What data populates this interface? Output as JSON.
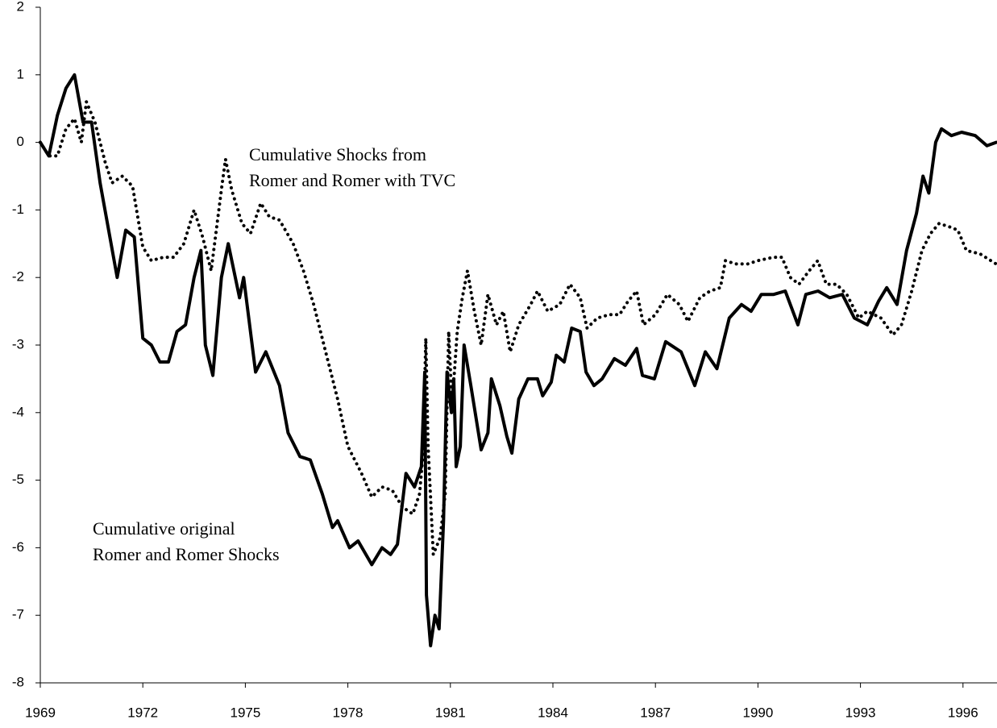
{
  "chart_data": {
    "type": "line",
    "xlim": [
      1969,
      1997
    ],
    "ylim": [
      -8,
      2
    ],
    "xticks": [
      1969,
      1972,
      1975,
      1978,
      1981,
      1984,
      1987,
      1990,
      1993,
      1996
    ],
    "yticks": [
      -8,
      -7,
      -6,
      -5,
      -4,
      -3,
      -2,
      -1,
      0,
      1,
      2
    ],
    "annotations": [
      {
        "lines": [
          "Cumulative Shocks from",
          "Romer and Romer with TVC"
        ]
      },
      {
        "lines": [
          "Cumulative original",
          "Romer and Romer Shocks"
        ]
      }
    ],
    "series": [
      {
        "color": "#000000",
        "style": "dotted",
        "x": [
          1969.0,
          1969.25,
          1969.5,
          1969.75,
          1970.0,
          1970.2,
          1970.35,
          1970.6,
          1970.9,
          1971.1,
          1971.4,
          1971.7,
          1972.0,
          1972.25,
          1972.6,
          1972.9,
          1973.2,
          1973.5,
          1973.75,
          1974.0,
          1974.3,
          1974.42,
          1974.6,
          1974.9,
          1975.15,
          1975.45,
          1975.7,
          1976.0,
          1976.4,
          1976.7,
          1977.0,
          1977.3,
          1977.7,
          1978.0,
          1978.4,
          1978.7,
          1979.0,
          1979.3,
          1979.6,
          1979.9,
          1980.1,
          1980.2,
          1980.28,
          1980.35,
          1980.5,
          1980.7,
          1980.85,
          1980.95,
          1981.05,
          1981.2,
          1981.35,
          1981.5,
          1981.7,
          1981.9,
          1982.1,
          1982.35,
          1982.55,
          1982.75,
          1983.0,
          1983.35,
          1983.55,
          1983.85,
          1984.2,
          1984.5,
          1984.8,
          1985.0,
          1985.3,
          1985.65,
          1985.95,
          1986.2,
          1986.45,
          1986.65,
          1987.0,
          1987.35,
          1987.7,
          1987.95,
          1988.3,
          1988.6,
          1988.9,
          1989.05,
          1989.35,
          1989.7,
          1990.0,
          1990.45,
          1990.7,
          1990.95,
          1991.2,
          1991.5,
          1991.75,
          1992.0,
          1992.3,
          1992.6,
          1992.95,
          1993.2,
          1993.6,
          1993.95,
          1994.2,
          1994.5,
          1994.8,
          1995.05,
          1995.3,
          1995.6,
          1995.85,
          1996.1,
          1996.5,
          1996.97
        ],
        "values": [
          0,
          -0.2,
          -0.2,
          0.2,
          0.35,
          0.0,
          0.6,
          0.3,
          -0.3,
          -0.6,
          -0.5,
          -0.65,
          -1.55,
          -1.75,
          -1.7,
          -1.7,
          -1.5,
          -1.0,
          -1.4,
          -1.9,
          -0.7,
          -0.25,
          -0.7,
          -1.2,
          -1.35,
          -0.9,
          -1.1,
          -1.15,
          -1.5,
          -1.9,
          -2.4,
          -3.0,
          -3.8,
          -4.5,
          -4.9,
          -5.25,
          -5.1,
          -5.15,
          -5.4,
          -5.5,
          -5.2,
          -4.6,
          -2.9,
          -4.5,
          -6.1,
          -5.85,
          -5.2,
          -2.8,
          -3.9,
          -2.8,
          -2.3,
          -1.9,
          -2.5,
          -3.0,
          -2.25,
          -2.7,
          -2.5,
          -3.1,
          -2.7,
          -2.4,
          -2.2,
          -2.5,
          -2.4,
          -2.1,
          -2.3,
          -2.75,
          -2.6,
          -2.55,
          -2.55,
          -2.35,
          -2.2,
          -2.7,
          -2.55,
          -2.25,
          -2.4,
          -2.65,
          -2.3,
          -2.2,
          -2.15,
          -1.75,
          -1.8,
          -1.8,
          -1.75,
          -1.7,
          -1.7,
          -2.0,
          -2.1,
          -1.9,
          -1.75,
          -2.1,
          -2.1,
          -2.25,
          -2.6,
          -2.5,
          -2.6,
          -2.85,
          -2.7,
          -2.2,
          -1.6,
          -1.35,
          -1.2,
          -1.25,
          -1.3,
          -1.6,
          -1.65,
          -1.8
        ]
      },
      {
        "color": "#000000",
        "style": "solid",
        "x": [
          1969.0,
          1969.25,
          1969.5,
          1969.75,
          1970.0,
          1970.25,
          1970.5,
          1970.75,
          1971.0,
          1971.25,
          1971.5,
          1971.75,
          1972.0,
          1972.25,
          1972.5,
          1972.75,
          1973.0,
          1973.25,
          1973.5,
          1973.7,
          1973.83,
          1974.05,
          1974.3,
          1974.5,
          1974.83,
          1974.95,
          1975.3,
          1975.6,
          1976.0,
          1976.25,
          1976.6,
          1976.9,
          1977.25,
          1977.55,
          1977.7,
          1978.05,
          1978.3,
          1978.7,
          1979.0,
          1979.25,
          1979.45,
          1979.7,
          1979.95,
          1980.15,
          1980.25,
          1980.3,
          1980.42,
          1980.55,
          1980.67,
          1980.8,
          1980.9,
          1981.03,
          1981.1,
          1981.17,
          1981.29,
          1981.4,
          1981.6,
          1981.9,
          1982.1,
          1982.2,
          1982.45,
          1982.65,
          1982.8,
          1983.0,
          1983.27,
          1983.55,
          1983.7,
          1983.95,
          1984.1,
          1984.33,
          1984.55,
          1984.8,
          1984.97,
          1985.2,
          1985.44,
          1985.8,
          1986.12,
          1986.45,
          1986.62,
          1986.97,
          1987.3,
          1987.75,
          1988.15,
          1988.46,
          1988.8,
          1989.16,
          1989.52,
          1989.8,
          1990.1,
          1990.46,
          1990.8,
          1991.17,
          1991.4,
          1991.76,
          1992.1,
          1992.47,
          1992.82,
          1993.2,
          1993.53,
          1993.77,
          1994.07,
          1994.35,
          1994.64,
          1994.83,
          1995.0,
          1995.2,
          1995.37,
          1995.66,
          1995.96,
          1996.36,
          1996.7,
          1996.97
        ],
        "values": [
          0,
          -0.2,
          0.4,
          0.8,
          1.0,
          0.3,
          0.3,
          -0.6,
          -1.3,
          -2.0,
          -1.3,
          -1.4,
          -2.9,
          -3.0,
          -3.25,
          -3.25,
          -2.8,
          -2.7,
          -2.0,
          -1.6,
          -3.0,
          -3.45,
          -2.0,
          -1.5,
          -2.3,
          -2.0,
          -3.4,
          -3.1,
          -3.6,
          -4.3,
          -4.65,
          -4.7,
          -5.2,
          -5.7,
          -5.6,
          -6.0,
          -5.9,
          -6.25,
          -6.0,
          -6.1,
          -5.95,
          -4.9,
          -5.1,
          -4.8,
          -3.4,
          -6.7,
          -7.45,
          -7.0,
          -7.2,
          -5.6,
          -3.4,
          -4.0,
          -3.5,
          -4.8,
          -4.5,
          -3.0,
          -3.6,
          -4.55,
          -4.3,
          -3.5,
          -3.9,
          -4.35,
          -4.6,
          -3.8,
          -3.5,
          -3.5,
          -3.75,
          -3.55,
          -3.15,
          -3.25,
          -2.75,
          -2.8,
          -3.4,
          -3.6,
          -3.5,
          -3.2,
          -3.3,
          -3.05,
          -3.45,
          -3.5,
          -2.95,
          -3.1,
          -3.6,
          -3.1,
          -3.35,
          -2.6,
          -2.4,
          -2.5,
          -2.25,
          -2.25,
          -2.2,
          -2.7,
          -2.25,
          -2.2,
          -2.3,
          -2.25,
          -2.6,
          -2.7,
          -2.35,
          -2.15,
          -2.4,
          -1.6,
          -1.05,
          -0.5,
          -0.75,
          0.0,
          0.2,
          0.1,
          0.15,
          0.1,
          -0.05,
          0.0
        ]
      }
    ]
  }
}
